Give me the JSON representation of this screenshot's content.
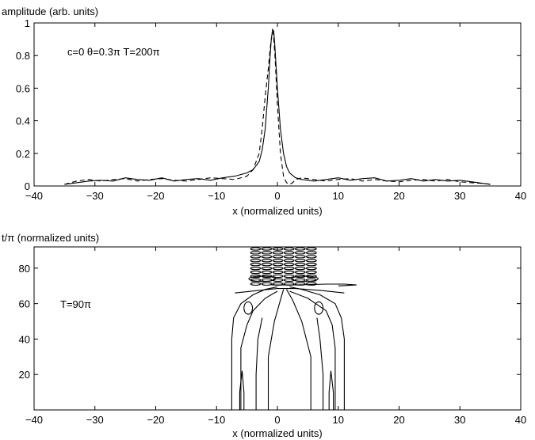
{
  "chart_data": [
    {
      "type": "line",
      "ylabel": "amplitude (arb. units)",
      "xlabel": "x (normalized units)",
      "annotation": "c=0  θ=0.3π  T=200π",
      "xlim": [
        -40,
        40
      ],
      "ylim": [
        0,
        1
      ],
      "xticks": [
        "−40",
        "−30",
        "−20",
        "−10",
        "0",
        "10",
        "20",
        "30",
        "40"
      ],
      "yticks": [
        "0",
        "0.2",
        "0.4",
        "0.6",
        "0.8",
        "1"
      ],
      "grid": false,
      "series": [
        {
          "style": "solid",
          "x": [
            -35,
            -33,
            -31,
            -29,
            -27,
            -25,
            -23,
            -21,
            -19,
            -17,
            -15,
            -13,
            -11,
            -9,
            -7,
            -5,
            -4,
            -3,
            -2.5,
            -2,
            -1.5,
            -1.2,
            -1,
            -0.8,
            -0.6,
            -0.4,
            0,
            0.5,
            1,
            1.5,
            2,
            3,
            4,
            6,
            8,
            10,
            12,
            14,
            16,
            18,
            20,
            22,
            24,
            26,
            28,
            30,
            32,
            34,
            35
          ],
          "y": [
            0.01,
            0.02,
            0.03,
            0.035,
            0.03,
            0.05,
            0.04,
            0.035,
            0.05,
            0.03,
            0.04,
            0.045,
            0.035,
            0.05,
            0.06,
            0.08,
            0.1,
            0.15,
            0.22,
            0.35,
            0.6,
            0.8,
            0.9,
            0.96,
            0.95,
            0.85,
            0.6,
            0.35,
            0.2,
            0.12,
            0.08,
            0.05,
            0.04,
            0.03,
            0.04,
            0.05,
            0.035,
            0.045,
            0.05,
            0.03,
            0.035,
            0.045,
            0.03,
            0.04,
            0.03,
            0.035,
            0.025,
            0.015,
            0.01
          ]
        },
        {
          "style": "dashed",
          "x": [
            -35,
            -33,
            -31,
            -29,
            -27,
            -25,
            -23,
            -21,
            -19,
            -17,
            -15,
            -13,
            -11,
            -9,
            -7,
            -5,
            -4,
            -3,
            -2.5,
            -2,
            -1.5,
            -1.2,
            -1,
            -0.8,
            -0.6,
            -0.4,
            0,
            0.5,
            1,
            1.5,
            2,
            2.5,
            3,
            4,
            6,
            8,
            10,
            12,
            14,
            16,
            18,
            20,
            22,
            24,
            26,
            28,
            30,
            32,
            34,
            35
          ],
          "y": [
            0.01,
            0.03,
            0.04,
            0.03,
            0.04,
            0.045,
            0.03,
            0.04,
            0.045,
            0.035,
            0.03,
            0.04,
            0.05,
            0.045,
            0.04,
            0.06,
            0.1,
            0.2,
            0.35,
            0.55,
            0.72,
            0.84,
            0.9,
            0.95,
            0.9,
            0.8,
            0.5,
            0.2,
            0.06,
            0.02,
            0.01,
            0.02,
            0.04,
            0.05,
            0.04,
            0.03,
            0.04,
            0.045,
            0.03,
            0.04,
            0.03,
            0.025,
            0.035,
            0.04,
            0.03,
            0.04,
            0.025,
            0.02,
            0.015,
            0.01
          ]
        }
      ]
    },
    {
      "type": "contour",
      "ylabel": "t/π (normalized units)",
      "xlabel": "x (normalized units)",
      "annotation": "T=90π",
      "xlim": [
        -40,
        40
      ],
      "ylim": [
        0,
        92
      ],
      "xticks": [
        "−40",
        "−30",
        "−20",
        "−10",
        "0",
        "10",
        "20",
        "30",
        "40"
      ],
      "yticks": [
        "20",
        "40",
        "60",
        "80"
      ],
      "grid": false,
      "contours": [
        {
          "points": [
            [
              -7.5,
              0
            ],
            [
              -7.5,
              40
            ],
            [
              -7.2,
              52
            ],
            [
              -6,
              60
            ],
            [
              -4,
              65
            ],
            [
              -2,
              68
            ],
            [
              0,
              69.5
            ]
          ]
        },
        {
          "points": [
            [
              11,
              0
            ],
            [
              11,
              40
            ],
            [
              10.5,
              52
            ],
            [
              9.5,
              60
            ],
            [
              7,
              65
            ],
            [
              4,
              68
            ],
            [
              2,
              69.5
            ]
          ]
        },
        {
          "points": [
            [
              -6,
              0
            ],
            [
              -6,
              35
            ],
            [
              -5,
              48
            ],
            [
              -4,
              56
            ],
            [
              -2,
              63
            ],
            [
              0,
              67
            ]
          ]
        },
        {
          "points": [
            [
              9.5,
              0
            ],
            [
              9.5,
              35
            ],
            [
              9,
              48
            ],
            [
              8,
              56
            ],
            [
              5,
              63
            ],
            [
              2,
              67
            ]
          ]
        },
        {
          "points": [
            [
              -1.5,
              0
            ],
            [
              -1.5,
              30
            ],
            [
              -0.5,
              50
            ],
            [
              0.5,
              62
            ],
            [
              1,
              68
            ]
          ]
        },
        {
          "points": [
            [
              5.5,
              0
            ],
            [
              5.5,
              30
            ],
            [
              4,
              50
            ],
            [
              2.5,
              62
            ],
            [
              1.5,
              68
            ]
          ]
        },
        {
          "points": [
            [
              -3.5,
              0
            ],
            [
              -3.5,
              20
            ],
            [
              -3.2,
              40
            ],
            [
              -2.5,
              52
            ]
          ]
        },
        {
          "points": [
            [
              7.5,
              0
            ],
            [
              7.5,
              20
            ],
            [
              7,
              40
            ],
            [
              6.5,
              52
            ]
          ]
        },
        {
          "points": [
            [
              -5.5,
              0
            ],
            [
              -5.5,
              10
            ],
            [
              -5.8,
              22
            ],
            [
              -6.2,
              10
            ],
            [
              -6.2,
              0
            ]
          ]
        },
        {
          "points": [
            [
              8.5,
              0
            ],
            [
              8.5,
              10
            ],
            [
              8.8,
              22
            ],
            [
              9.2,
              10
            ],
            [
              9.2,
              0
            ]
          ]
        },
        {
          "points": [
            [
              -1,
              70.5
            ],
            [
              3,
              70.5
            ],
            [
              8,
              71
            ],
            [
              11,
              71
            ],
            [
              13,
              70.5
            ],
            [
              10,
              70
            ]
          ]
        },
        {
          "points": [
            [
              -7,
              66
            ],
            [
              -3,
              67.5
            ],
            [
              0,
              68.5
            ],
            [
              3,
              68.5
            ],
            [
              7,
              67.5
            ],
            [
              11,
              66
            ]
          ]
        }
      ],
      "closed_loops": [
        {
          "cx": -4.8,
          "cy": 57.5,
          "rx": 0.7,
          "ry": 3.5
        },
        {
          "cx": 6.8,
          "cy": 57.5,
          "rx": 0.7,
          "ry": 3.5
        },
        {
          "cx": -2.5,
          "cy": 74,
          "rx": 2.2,
          "ry": 1.5
        },
        {
          "cx": 4.5,
          "cy": 74,
          "rx": 2.2,
          "ry": 1.5
        }
      ],
      "oscillation_band": {
        "x_min": -4.5,
        "x_max": 6.5,
        "t_min": 70,
        "t_max": 92,
        "rows": 10,
        "cols": 6
      }
    }
  ]
}
